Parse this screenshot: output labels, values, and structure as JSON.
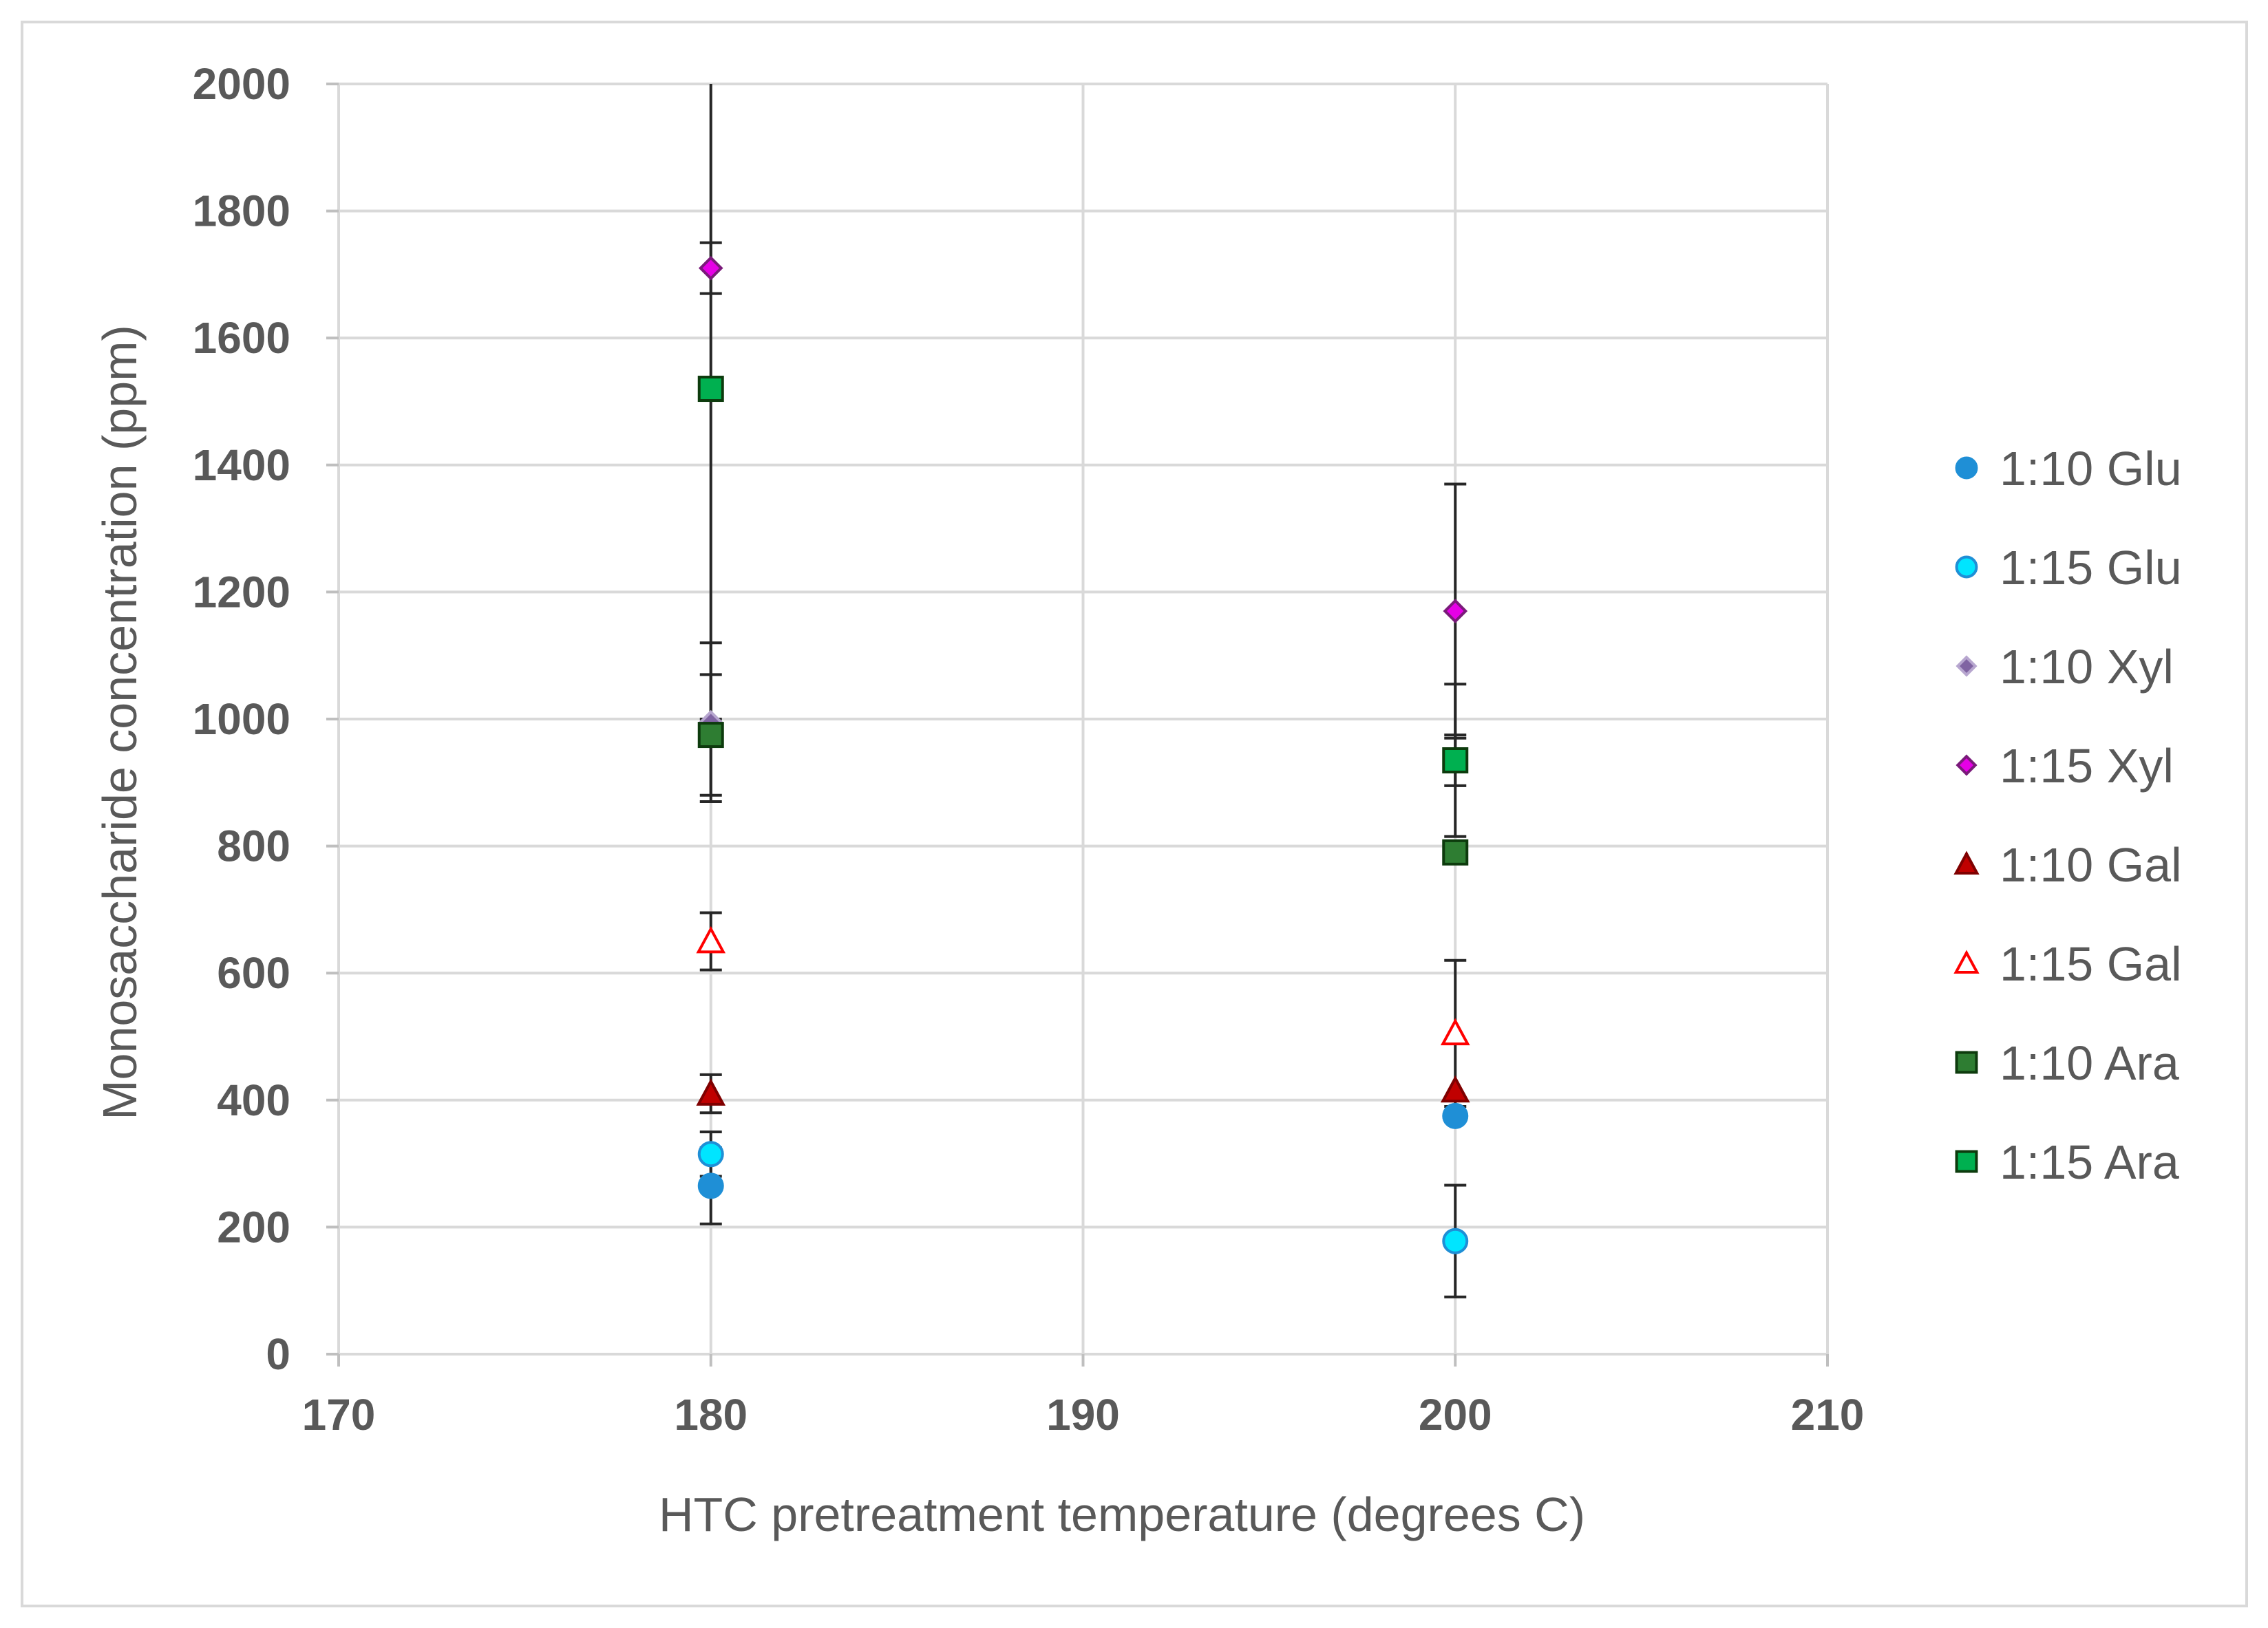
{
  "chart_data": {
    "type": "scatter",
    "title": "",
    "xlabel": "HTC pretreatment temperature (degrees C)",
    "ylabel": "Monosaccharide concentration (ppm)",
    "xlim": [
      170,
      210
    ],
    "ylim": [
      0,
      2000
    ],
    "xticks": [
      170,
      180,
      190,
      200,
      210
    ],
    "yticks": [
      0,
      200,
      400,
      600,
      800,
      1000,
      1200,
      1400,
      1600,
      1800,
      2000
    ],
    "grid": true,
    "legend_position": "right",
    "series": [
      {
        "name": "1:10 Glu",
        "marker": "circle",
        "fill": "#1f8fd6",
        "stroke": "#1f8fd6",
        "points": [
          {
            "x": 180,
            "y": 265,
            "err": 60
          },
          {
            "x": 200,
            "y": 375,
            "err": 0
          }
        ]
      },
      {
        "name": "1:15 Glu",
        "marker": "circle",
        "fill": "#00e5ff",
        "stroke": "#1f8fd6",
        "points": [
          {
            "x": 180,
            "y": 315,
            "err": 35
          },
          {
            "x": 200,
            "y": 178,
            "err": 88
          }
        ]
      },
      {
        "name": "1:10 Xyl",
        "marker": "diamond",
        "fill": "#8064a2",
        "stroke": "#b7a6cf",
        "points": [
          {
            "x": 180,
            "y": 995,
            "err": 125
          },
          {
            "x": 200,
            "y": 935,
            "err": 40
          }
        ]
      },
      {
        "name": "1:15 Xyl",
        "marker": "diamond",
        "fill": "#e600e6",
        "stroke": "#7a1a7a",
        "points": [
          {
            "x": 180,
            "y": 1710,
            "err": 40
          },
          {
            "x": 200,
            "y": 1170,
            "err": 200
          }
        ]
      },
      {
        "name": "1:10 Gal",
        "marker": "triangle",
        "fill": "#c00000",
        "stroke": "#7f0000",
        "points": [
          {
            "x": 180,
            "y": 410,
            "err": 30
          },
          {
            "x": 200,
            "y": 415,
            "err": 0
          }
        ]
      },
      {
        "name": "1:15 Gal",
        "marker": "triangle",
        "fill": "#ffffff",
        "stroke": "#ff0000",
        "points": [
          {
            "x": 180,
            "y": 650,
            "err": 45
          },
          {
            "x": 200,
            "y": 505,
            "err": 115
          }
        ]
      },
      {
        "name": "1:10 Ara",
        "marker": "square",
        "fill": "#2e7d32",
        "stroke": "#0d3b0d",
        "points": [
          {
            "x": 180,
            "y": 975,
            "err": 95
          },
          {
            "x": 200,
            "y": 790,
            "err": 0
          }
        ]
      },
      {
        "name": "1:15 Ara",
        "marker": "square",
        "fill": "#00b050",
        "stroke": "#0d3b0d",
        "points": [
          {
            "x": 180,
            "y": 1520,
            "err": 520
          },
          {
            "x": 200,
            "y": 935,
            "err": 120
          }
        ]
      }
    ]
  }
}
